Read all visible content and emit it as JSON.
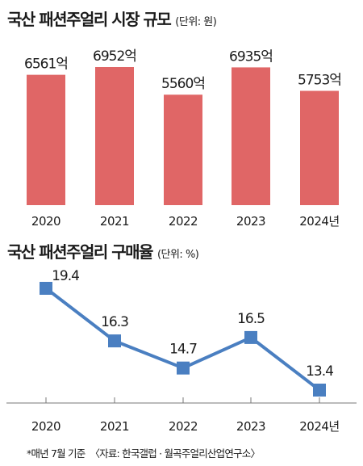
{
  "bar_chart": {
    "title": "국산 패션주얼리 시장 규모",
    "unit": "(단위: 원)",
    "bar_color": "#e06666"
  },
  "line_chart": {
    "title": "국산 패션주얼리 구매율",
    "unit": "(단위: %)",
    "line_color": "#4a7fc1",
    "marker_color": "#4a7fc1"
  },
  "footnote": {
    "note": "*매년 7월 기준",
    "source": "〈자료: 한국갤럽 · 월곡주얼리산업연구소〉"
  },
  "chart_data": [
    {
      "type": "bar",
      "title": "국산 패션주얼리 시장 규모",
      "unit": "(단위: 원)",
      "categories": [
        "2020",
        "2021",
        "2022",
        "2023",
        "2024년"
      ],
      "values": [
        6561,
        6952,
        5560,
        6935,
        5753
      ],
      "value_labels": [
        "6561억",
        "6952억",
        "5560억",
        "6935억",
        "5753억"
      ],
      "xlabel": "",
      "ylabel": "",
      "ylim": [
        0,
        6952
      ],
      "grid": false
    },
    {
      "type": "line",
      "title": "국산 패션주얼리 구매율",
      "unit": "(단위: %)",
      "categories": [
        "2020",
        "2021",
        "2022",
        "2023",
        "2024년"
      ],
      "values": [
        19.4,
        16.3,
        14.7,
        16.5,
        13.4
      ],
      "value_labels": [
        "19.4",
        "16.3",
        "14.7",
        "16.5",
        "13.4"
      ],
      "xlabel": "",
      "ylabel": "",
      "ylim": [
        13.4,
        19.4
      ],
      "grid": false
    }
  ]
}
